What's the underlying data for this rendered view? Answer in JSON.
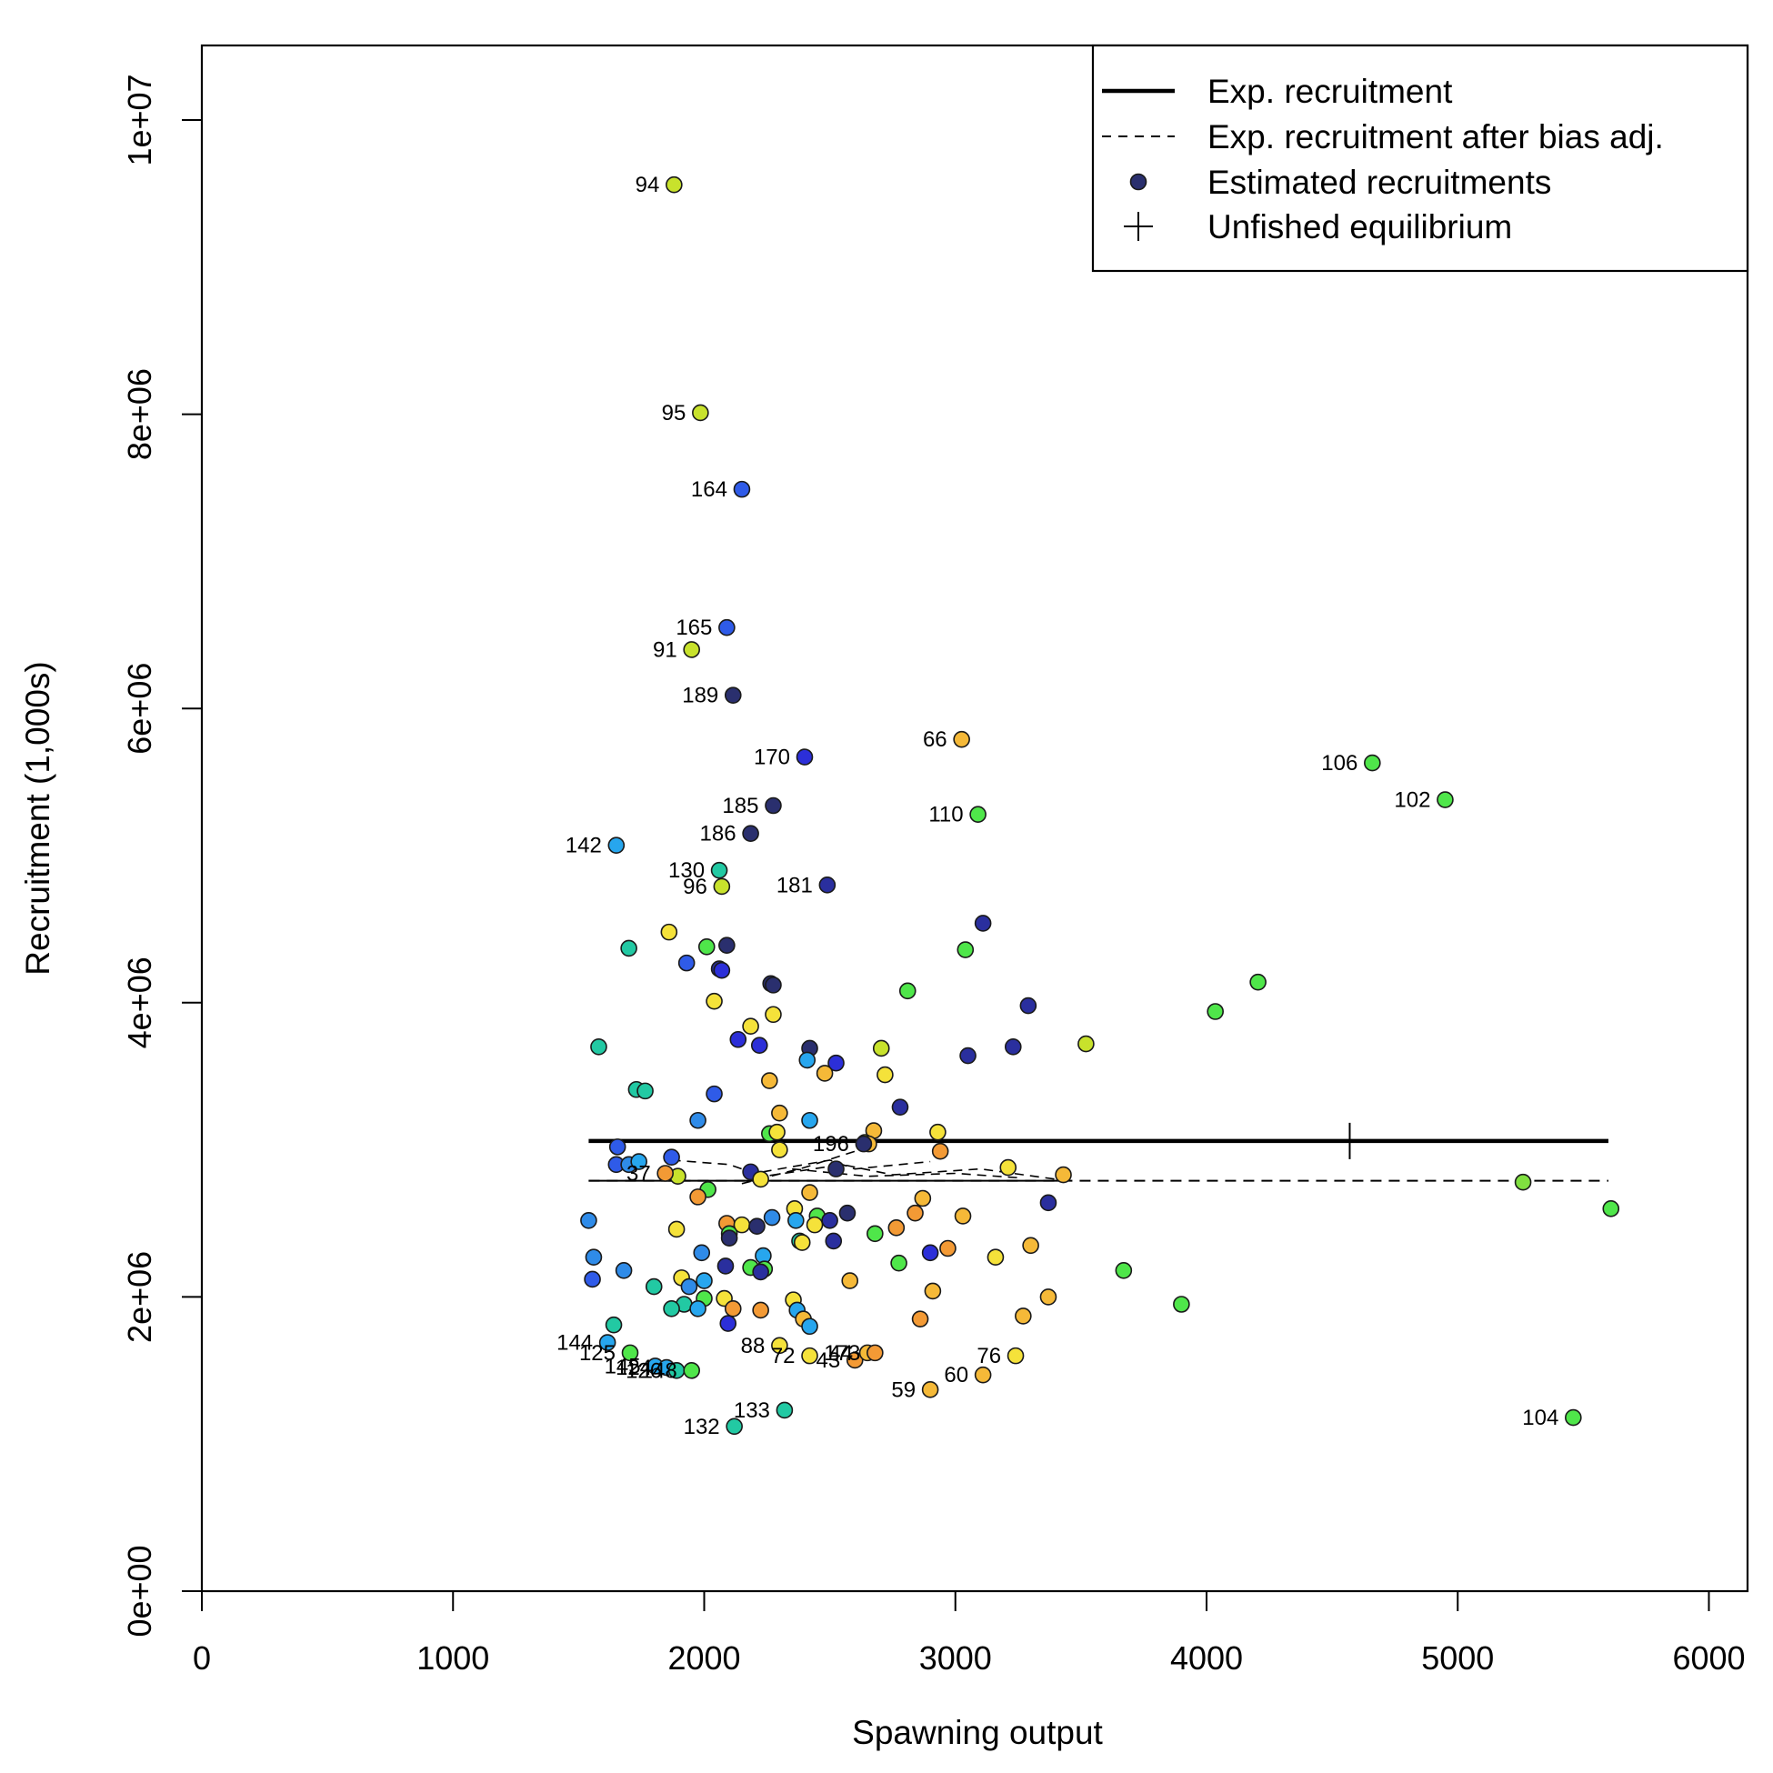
{
  "chart_data": {
    "type": "scatter",
    "title": "",
    "xlabel": "Spawning output",
    "ylabel": "Recruitment (1,000s)",
    "xlim": [
      0,
      6150
    ],
    "ylim": [
      0,
      10500000
    ],
    "x_ticks": [
      0,
      1000,
      2000,
      3000,
      4000,
      5000,
      6000
    ],
    "x_tick_labels": [
      "0",
      "1000",
      "2000",
      "3000",
      "4000",
      "5000",
      "6000"
    ],
    "y_ticks": [
      0,
      2000000,
      4000000,
      6000000,
      8000000,
      10000000
    ],
    "y_tick_labels": [
      "0e+00",
      "2e+06",
      "4e+06",
      "6e+06",
      "8e+06",
      "1e+07"
    ],
    "grid": false,
    "legend_position": "top-right",
    "legend": [
      {
        "label": "Exp. recruitment",
        "symbol": "thick-line"
      },
      {
        "label": "Exp. recruitment after bias adj.",
        "symbol": "dashed-line"
      },
      {
        "label": "Estimated recruitments",
        "symbol": "dot",
        "color": "#2a2f6e"
      },
      {
        "label": "Unfished equilibrium",
        "symbol": "plus"
      }
    ],
    "expected_recruitment": {
      "x": [
        1540,
        5600
      ],
      "y": [
        3060000,
        3060000
      ]
    },
    "bias_adjusted_recruitment": {
      "x": [
        1540,
        5600
      ],
      "y": [
        2790000,
        2790000
      ]
    },
    "bias_adjusted_wiggles": [
      {
        "x": [
          1870,
          2100,
          2200,
          2500,
          2600,
          2900
        ],
        "y": [
          2930000,
          2900000,
          2840000,
          2930000,
          2870000,
          2920000
        ]
      },
      {
        "x": [
          2200,
          2550,
          2750,
          3100,
          3400
        ],
        "y": [
          2810000,
          2900000,
          2830000,
          2870000,
          2800000
        ]
      },
      {
        "x": [
          2350,
          2650,
          3000,
          3250
        ],
        "y": [
          2870000,
          2820000,
          2840000,
          2810000
        ]
      },
      {
        "x": [
          2150,
          2400,
          2600,
          2650
        ],
        "y": [
          2770000,
          2880000,
          2990000,
          3020000
        ]
      }
    ],
    "unfished_equilibrium": {
      "x": 4570,
      "y": 3060000
    },
    "labeled_points": [
      {
        "label": "94",
        "x": 1880,
        "y": 9560000,
        "color": "#c8e22c"
      },
      {
        "label": "95",
        "x": 1985,
        "y": 8010000,
        "color": "#c8e22c"
      },
      {
        "label": "164",
        "x": 2150,
        "y": 7490000,
        "color": "#2f5be8"
      },
      {
        "label": "165",
        "x": 2090,
        "y": 6550000,
        "color": "#2f5be8"
      },
      {
        "label": "91",
        "x": 1950,
        "y": 6400000,
        "color": "#c8e22c"
      },
      {
        "label": "189",
        "x": 2115,
        "y": 6090000,
        "color": "#2a2f6e"
      },
      {
        "label": "66",
        "x": 3025,
        "y": 5790000,
        "color": "#f5b938"
      },
      {
        "label": "170",
        "x": 2400,
        "y": 5670000,
        "color": "#2c2fd8"
      },
      {
        "label": "106",
        "x": 4660,
        "y": 5630000,
        "color": "#4fe64a"
      },
      {
        "label": "102",
        "x": 4950,
        "y": 5380000,
        "color": "#4fe64a"
      },
      {
        "label": "185",
        "x": 2275,
        "y": 5340000,
        "color": "#2a2f6e"
      },
      {
        "label": "110",
        "x": 3090,
        "y": 5280000,
        "color": "#4fe64a"
      },
      {
        "label": "186",
        "x": 2185,
        "y": 5150000,
        "color": "#2a2f6e"
      },
      {
        "label": "142",
        "x": 1650,
        "y": 5070000,
        "color": "#27a6ee"
      },
      {
        "label": "130",
        "x": 2060,
        "y": 4900000,
        "color": "#22c9a3"
      },
      {
        "label": "96",
        "x": 2070,
        "y": 4790000,
        "color": "#c8e22c"
      },
      {
        "label": "181",
        "x": 2490,
        "y": 4800000,
        "color": "#2a2f9e"
      },
      {
        "label": "196",
        "x": 2635,
        "y": 3040000,
        "color": "#2a2f6e"
      },
      {
        "label": "37",
        "x": 1845,
        "y": 2840000,
        "color": "#f39a35"
      },
      {
        "label": "144",
        "x": 1615,
        "y": 1690000,
        "color": "#27a6ee"
      },
      {
        "label": "125",
        "x": 1705,
        "y": 1620000,
        "color": "#4fe64a"
      },
      {
        "label": "145",
        "x": 1805,
        "y": 1530000,
        "color": "#27a6ee"
      },
      {
        "label": "124",
        "x": 1850,
        "y": 1520000,
        "color": "#27a6ee"
      },
      {
        "label": "126",
        "x": 1890,
        "y": 1500000,
        "color": "#22c9a3"
      },
      {
        "label": "148",
        "x": 1950,
        "y": 1500000,
        "color": "#4fe64a"
      },
      {
        "label": "88",
        "x": 2300,
        "y": 1670000,
        "color": "#f5e23a"
      },
      {
        "label": "72",
        "x": 2420,
        "y": 1600000,
        "color": "#f5e23a"
      },
      {
        "label": "43",
        "x": 2600,
        "y": 1570000,
        "color": "#f39a35"
      },
      {
        "label": "44",
        "x": 2650,
        "y": 1620000,
        "color": "#f5b938"
      },
      {
        "label": "173",
        "x": 2680,
        "y": 1620000,
        "color": "#f39a35"
      },
      {
        "label": "76",
        "x": 3240,
        "y": 1600000,
        "color": "#f5e23a"
      },
      {
        "label": "60",
        "x": 3110,
        "y": 1470000,
        "color": "#f5b938"
      },
      {
        "label": "59",
        "x": 2900,
        "y": 1370000,
        "color": "#f5b938"
      },
      {
        "label": "133",
        "x": 2320,
        "y": 1230000,
        "color": "#22c9a3"
      },
      {
        "label": "132",
        "x": 2120,
        "y": 1120000,
        "color": "#22c9a3"
      },
      {
        "label": "104",
        "x": 5460,
        "y": 1180000,
        "color": "#4fe64a"
      }
    ],
    "points": [
      {
        "x": 1860,
        "y": 4480000,
        "color": "#f5e23a"
      },
      {
        "x": 1700,
        "y": 4370000,
        "color": "#22c9a3"
      },
      {
        "x": 2010,
        "y": 4380000,
        "color": "#4fe64a"
      },
      {
        "x": 2090,
        "y": 4390000,
        "color": "#2a2f6e"
      },
      {
        "x": 1930,
        "y": 4270000,
        "color": "#2f5be8"
      },
      {
        "x": 2060,
        "y": 4230000,
        "color": "#2a2f9e"
      },
      {
        "x": 2070,
        "y": 4220000,
        "color": "#2c2fd8"
      },
      {
        "x": 3110,
        "y": 4540000,
        "color": "#2a2f9e"
      },
      {
        "x": 3040,
        "y": 4360000,
        "color": "#4fe64a"
      },
      {
        "x": 2265,
        "y": 4130000,
        "color": "#2a2f6e"
      },
      {
        "x": 2275,
        "y": 4120000,
        "color": "#2a2f6e"
      },
      {
        "x": 2810,
        "y": 4080000,
        "color": "#4fe64a"
      },
      {
        "x": 4205,
        "y": 4140000,
        "color": "#4fe64a"
      },
      {
        "x": 2040,
        "y": 4010000,
        "color": "#f5e23a"
      },
      {
        "x": 3290,
        "y": 3980000,
        "color": "#2a2f9e"
      },
      {
        "x": 4035,
        "y": 3940000,
        "color": "#4fe64a"
      },
      {
        "x": 2275,
        "y": 3920000,
        "color": "#f5e23a"
      },
      {
        "x": 2185,
        "y": 3840000,
        "color": "#f5e23a"
      },
      {
        "x": 2135,
        "y": 3750000,
        "color": "#2c2fd8"
      },
      {
        "x": 1580,
        "y": 3700000,
        "color": "#22c9a3"
      },
      {
        "x": 2220,
        "y": 3710000,
        "color": "#2c2fd8"
      },
      {
        "x": 2420,
        "y": 3690000,
        "color": "#2a2f6e"
      },
      {
        "x": 2705,
        "y": 3690000,
        "color": "#c8e22c"
      },
      {
        "x": 3230,
        "y": 3700000,
        "color": "#2a2f9e"
      },
      {
        "x": 3520,
        "y": 3720000,
        "color": "#c8e22c"
      },
      {
        "x": 3050,
        "y": 3640000,
        "color": "#2a2f9e"
      },
      {
        "x": 2410,
        "y": 3610000,
        "color": "#27a6ee"
      },
      {
        "x": 2525,
        "y": 3590000,
        "color": "#2c2fd8"
      },
      {
        "x": 2480,
        "y": 3520000,
        "color": "#f5b938"
      },
      {
        "x": 2720,
        "y": 3510000,
        "color": "#f5e23a"
      },
      {
        "x": 2260,
        "y": 3470000,
        "color": "#f5b938"
      },
      {
        "x": 1730,
        "y": 3410000,
        "color": "#22c9a3"
      },
      {
        "x": 1765,
        "y": 3400000,
        "color": "#22c9a3"
      },
      {
        "x": 2040,
        "y": 3380000,
        "color": "#2f5be8"
      },
      {
        "x": 2780,
        "y": 3290000,
        "color": "#2a2f9e"
      },
      {
        "x": 2300,
        "y": 3250000,
        "color": "#f5b938"
      },
      {
        "x": 1975,
        "y": 3200000,
        "color": "#2f8be8"
      },
      {
        "x": 2420,
        "y": 3200000,
        "color": "#27a6ee"
      },
      {
        "x": 2675,
        "y": 3130000,
        "color": "#f5b938"
      },
      {
        "x": 2930,
        "y": 3120000,
        "color": "#f5e23a"
      },
      {
        "x": 2260,
        "y": 3110000,
        "color": "#4fe64a"
      },
      {
        "x": 2290,
        "y": 3120000,
        "color": "#f5e23a"
      },
      {
        "x": 2640,
        "y": 3050000,
        "color": "#c8e22c"
      },
      {
        "x": 2655,
        "y": 3040000,
        "color": "#f5b938"
      },
      {
        "x": 1655,
        "y": 3020000,
        "color": "#2f5be8"
      },
      {
        "x": 2300,
        "y": 3000000,
        "color": "#f5e23a"
      },
      {
        "x": 2940,
        "y": 2990000,
        "color": "#f39a35"
      },
      {
        "x": 1870,
        "y": 2950000,
        "color": "#2f5be8"
      },
      {
        "x": 1650,
        "y": 2900000,
        "color": "#2f5be8"
      },
      {
        "x": 1700,
        "y": 2900000,
        "color": "#2f8be8"
      },
      {
        "x": 1740,
        "y": 2920000,
        "color": "#27a6ee"
      },
      {
        "x": 2525,
        "y": 2870000,
        "color": "#2a2f6e"
      },
      {
        "x": 2185,
        "y": 2850000,
        "color": "#2a2f9e"
      },
      {
        "x": 3210,
        "y": 2880000,
        "color": "#f5e23a"
      },
      {
        "x": 3430,
        "y": 2830000,
        "color": "#f5b938"
      },
      {
        "x": 1895,
        "y": 2820000,
        "color": "#c8e22c"
      },
      {
        "x": 2225,
        "y": 2800000,
        "color": "#f5e23a"
      },
      {
        "x": 5260,
        "y": 2780000,
        "color": "#80e040"
      },
      {
        "x": 2015,
        "y": 2730000,
        "color": "#4fe64a"
      },
      {
        "x": 2420,
        "y": 2710000,
        "color": "#f5b938"
      },
      {
        "x": 1975,
        "y": 2680000,
        "color": "#f39a35"
      },
      {
        "x": 2870,
        "y": 2670000,
        "color": "#f5b938"
      },
      {
        "x": 3370,
        "y": 2640000,
        "color": "#2a2f9e"
      },
      {
        "x": 5610,
        "y": 2600000,
        "color": "#4fe64a"
      },
      {
        "x": 2360,
        "y": 2600000,
        "color": "#f5e23a"
      },
      {
        "x": 2570,
        "y": 2570000,
        "color": "#2a2f6e"
      },
      {
        "x": 2840,
        "y": 2570000,
        "color": "#f39a35"
      },
      {
        "x": 3030,
        "y": 2550000,
        "color": "#f5b938"
      },
      {
        "x": 2450,
        "y": 2550000,
        "color": "#4fe64a"
      },
      {
        "x": 2270,
        "y": 2540000,
        "color": "#2f8be8"
      },
      {
        "x": 1540,
        "y": 2520000,
        "color": "#2f8be8"
      },
      {
        "x": 2365,
        "y": 2520000,
        "color": "#27a6ee"
      },
      {
        "x": 2500,
        "y": 2520000,
        "color": "#2a2f9e"
      },
      {
        "x": 2440,
        "y": 2490000,
        "color": "#f5e23a"
      },
      {
        "x": 2090,
        "y": 2500000,
        "color": "#f39a35"
      },
      {
        "x": 2150,
        "y": 2490000,
        "color": "#f5e23a"
      },
      {
        "x": 2210,
        "y": 2480000,
        "color": "#2a2f6e"
      },
      {
        "x": 2765,
        "y": 2470000,
        "color": "#f39a35"
      },
      {
        "x": 1890,
        "y": 2460000,
        "color": "#f5e23a"
      },
      {
        "x": 2100,
        "y": 2430000,
        "color": "#4fe64a"
      },
      {
        "x": 2680,
        "y": 2430000,
        "color": "#4fe64a"
      },
      {
        "x": 2100,
        "y": 2400000,
        "color": "#2a2f6e"
      },
      {
        "x": 2380,
        "y": 2380000,
        "color": "#22c9a3"
      },
      {
        "x": 2390,
        "y": 2370000,
        "color": "#f5e23a"
      },
      {
        "x": 2515,
        "y": 2380000,
        "color": "#2a2f9e"
      },
      {
        "x": 3300,
        "y": 2350000,
        "color": "#f5b938"
      },
      {
        "x": 2970,
        "y": 2330000,
        "color": "#f39a35"
      },
      {
        "x": 1990,
        "y": 2300000,
        "color": "#2f8be8"
      },
      {
        "x": 2900,
        "y": 2300000,
        "color": "#2c2fd8"
      },
      {
        "x": 2235,
        "y": 2280000,
        "color": "#27a6ee"
      },
      {
        "x": 3160,
        "y": 2270000,
        "color": "#f5e23a"
      },
      {
        "x": 1560,
        "y": 2270000,
        "color": "#2f8be8"
      },
      {
        "x": 2775,
        "y": 2230000,
        "color": "#4fe64a"
      },
      {
        "x": 2085,
        "y": 2210000,
        "color": "#2a2f9e"
      },
      {
        "x": 2185,
        "y": 2200000,
        "color": "#4fe64a"
      },
      {
        "x": 2240,
        "y": 2190000,
        "color": "#4fe64a"
      },
      {
        "x": 2225,
        "y": 2170000,
        "color": "#2a2f9e"
      },
      {
        "x": 1680,
        "y": 2180000,
        "color": "#2f8be8"
      },
      {
        "x": 3670,
        "y": 2180000,
        "color": "#4fe64a"
      },
      {
        "x": 1555,
        "y": 2120000,
        "color": "#2f5be8"
      },
      {
        "x": 1910,
        "y": 2130000,
        "color": "#f5e23a"
      },
      {
        "x": 2000,
        "y": 2110000,
        "color": "#27a6ee"
      },
      {
        "x": 2580,
        "y": 2110000,
        "color": "#f5b938"
      },
      {
        "x": 1800,
        "y": 2070000,
        "color": "#22c9a3"
      },
      {
        "x": 1940,
        "y": 2070000,
        "color": "#2f8be8"
      },
      {
        "x": 2910,
        "y": 2040000,
        "color": "#f5b938"
      },
      {
        "x": 3370,
        "y": 2000000,
        "color": "#f5b938"
      },
      {
        "x": 2080,
        "y": 1990000,
        "color": "#f5e23a"
      },
      {
        "x": 2000,
        "y": 1990000,
        "color": "#4fe64a"
      },
      {
        "x": 2355,
        "y": 1980000,
        "color": "#f5e23a"
      },
      {
        "x": 1920,
        "y": 1950000,
        "color": "#22c9a3"
      },
      {
        "x": 3900,
        "y": 1950000,
        "color": "#4fe64a"
      },
      {
        "x": 1870,
        "y": 1920000,
        "color": "#22c9a3"
      },
      {
        "x": 1975,
        "y": 1920000,
        "color": "#27a6ee"
      },
      {
        "x": 2115,
        "y": 1920000,
        "color": "#f39a35"
      },
      {
        "x": 2225,
        "y": 1910000,
        "color": "#f39a35"
      },
      {
        "x": 2370,
        "y": 1910000,
        "color": "#27a6ee"
      },
      {
        "x": 3270,
        "y": 1870000,
        "color": "#f5b938"
      },
      {
        "x": 2860,
        "y": 1850000,
        "color": "#f39a35"
      },
      {
        "x": 2395,
        "y": 1850000,
        "color": "#f5b938"
      },
      {
        "x": 2095,
        "y": 1820000,
        "color": "#2c2fd8"
      },
      {
        "x": 1640,
        "y": 1810000,
        "color": "#22c9a3"
      },
      {
        "x": 2420,
        "y": 1800000,
        "color": "#27a6ee"
      }
    ]
  }
}
